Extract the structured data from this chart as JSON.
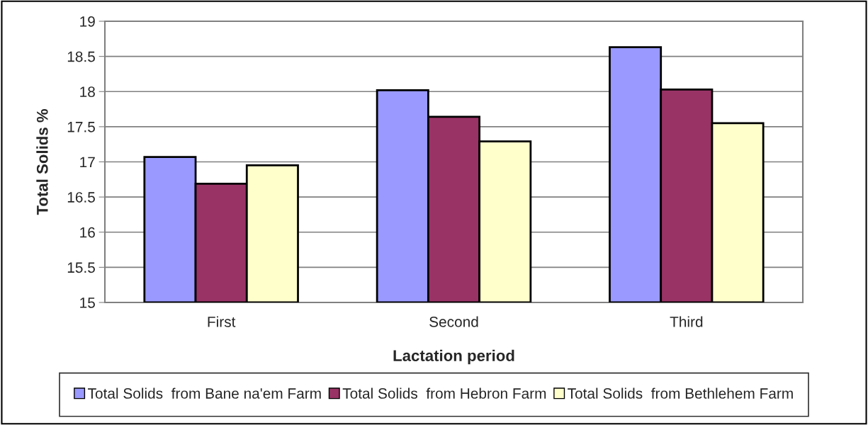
{
  "chart_data": {
    "type": "bar",
    "xlabel": "Lactation period",
    "ylabel": "Total Solids %",
    "categories": [
      "First",
      "Second",
      "Third"
    ],
    "series": [
      {
        "name": "Total Solids  from Bane na'em Farm",
        "color": "#9999ff",
        "values": [
          17.07,
          18.02,
          18.63
        ]
      },
      {
        "name": "Total Solids  from Hebron Farm",
        "color": "#993366",
        "values": [
          16.69,
          17.64,
          18.03
        ]
      },
      {
        "name": "Total Solids  from Bethlehem Farm",
        "color": "#ffffcc",
        "values": [
          16.95,
          17.29,
          17.55
        ]
      }
    ],
    "ylim": [
      15,
      19
    ],
    "yticks": [
      15,
      15.5,
      16,
      16.5,
      17,
      17.5,
      18,
      18.5,
      19
    ],
    "grid": "y",
    "legend": "bottom"
  }
}
